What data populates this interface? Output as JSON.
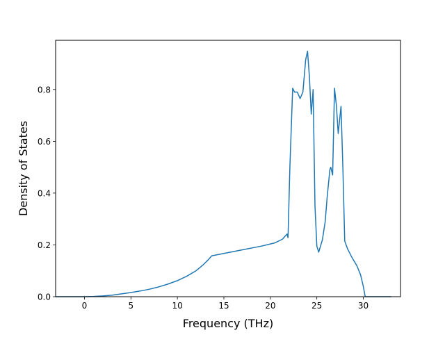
{
  "chart_data": {
    "type": "line",
    "title": "",
    "xlabel": "Frequency (THz)",
    "ylabel": "Density of States",
    "xlim": [
      -3.1,
      34.0
    ],
    "ylim": [
      0.0,
      0.99
    ],
    "x_ticks": [
      0,
      5,
      10,
      15,
      20,
      25,
      30
    ],
    "x_tick_labels": [
      "0",
      "5",
      "10",
      "15",
      "20",
      "25",
      "30"
    ],
    "y_ticks": [
      0.0,
      0.2,
      0.4,
      0.6,
      0.8
    ],
    "y_tick_labels": [
      "0.0",
      "0.2",
      "0.4",
      "0.6",
      "0.8"
    ],
    "grid": false,
    "legend": "none",
    "line_color": "#1f77b4",
    "series": [
      {
        "x": [
          -3.1,
          -1.0,
          0.0,
          1.0,
          2.0,
          3.0,
          4.0,
          5.0,
          6.0,
          7.0,
          8.0,
          9.0,
          10.0,
          11.0,
          12.0,
          12.8,
          13.3,
          13.7,
          15.0,
          17.0,
          19.0,
          20.5,
          21.3,
          21.8,
          21.9,
          22.1,
          22.4,
          22.6,
          22.9,
          23.2,
          23.5,
          23.8,
          24.0,
          24.2,
          24.4,
          24.6,
          24.8,
          25.0,
          25.2,
          25.6,
          25.9,
          26.1,
          26.4,
          26.5,
          26.7,
          26.9,
          27.1,
          27.3,
          27.6,
          27.8,
          28.0,
          28.3,
          28.8,
          29.3,
          29.7,
          30.0,
          30.2,
          31.0,
          33.0
        ],
        "y": [
          0.0,
          0.0,
          0.0,
          0.001,
          0.003,
          0.006,
          0.011,
          0.016,
          0.022,
          0.029,
          0.038,
          0.049,
          0.062,
          0.079,
          0.1,
          0.124,
          0.142,
          0.158,
          0.167,
          0.181,
          0.195,
          0.208,
          0.222,
          0.242,
          0.228,
          0.5,
          0.805,
          0.79,
          0.79,
          0.765,
          0.79,
          0.915,
          0.948,
          0.85,
          0.705,
          0.8,
          0.35,
          0.195,
          0.172,
          0.22,
          0.29,
          0.38,
          0.49,
          0.5,
          0.47,
          0.805,
          0.74,
          0.63,
          0.735,
          0.5,
          0.215,
          0.185,
          0.15,
          0.12,
          0.085,
          0.04,
          0.0,
          0.0,
          0.0
        ]
      }
    ]
  }
}
